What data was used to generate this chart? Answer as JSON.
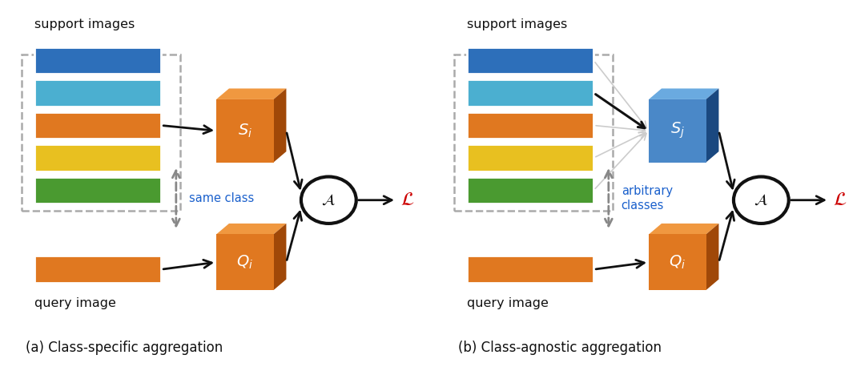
{
  "bg_color": "#ffffff",
  "bar_colors_support": [
    "#2d6fba",
    "#4bafd0",
    "#e07820",
    "#e8c020",
    "#4a9a30"
  ],
  "bar_color_query": "#e07820",
  "box_face_orange": "#e07820",
  "box_top_orange": "#f09840",
  "box_side_orange": "#a04808",
  "box_face_blue": "#4a88c8",
  "box_top_blue": "#6aaae0",
  "box_side_blue": "#1a4880",
  "circle_edge": "#111111",
  "arrow_color": "#111111",
  "gray_arrow_color": "#888888",
  "fan_dark": "#111111",
  "fan_light": "#cccccc",
  "loss_color": "#cc0000",
  "text_color": "#111111",
  "same_class_color": "#1a60cc",
  "arbitrary_color": "#1a60cc",
  "support_label": "support images",
  "query_label": "query image",
  "same_class_label": "same class",
  "arbitrary_label": "arbitrary\nclasses",
  "title_a": "(a) Class-specific aggregation",
  "title_b": "(b) Class-agnostic aggregation",
  "Si_label": "$S_i$",
  "Sj_label": "$S_j$",
  "Qi_label": "$Q_i$",
  "A_label": "$\\mathcal{A}$",
  "L_label": "$\\mathcal{L}$"
}
